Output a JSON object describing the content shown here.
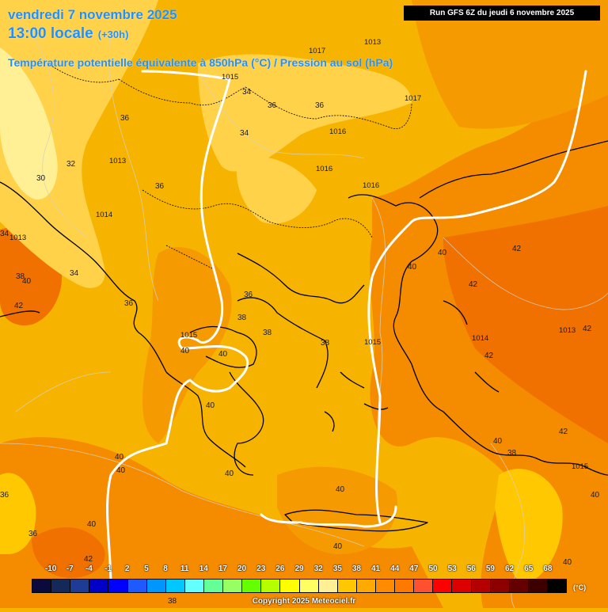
{
  "header": {
    "date": "vendredi 7 novembre 2025",
    "local_time": "13:00 locale",
    "lead_time": "(+30h)",
    "parameter": "Température potentielle équivalente à 850hPa (°C) / Pression au sol (hPa)",
    "run": "Run GFS 6Z du jeudi 6 novembre 2025"
  },
  "legend": {
    "unit": "(°C)",
    "ticks": [
      "-10",
      "-7",
      "-4",
      "-1",
      "2",
      "5",
      "8",
      "11",
      "14",
      "17",
      "20",
      "23",
      "26",
      "29",
      "32",
      "35",
      "38",
      "41",
      "44",
      "47",
      "50",
      "53",
      "56",
      "59",
      "62",
      "65",
      "68"
    ],
    "colors": [
      "#0a0a3c",
      "#14285a",
      "#1e3c96",
      "#0000c8",
      "#0000ff",
      "#1e5aff",
      "#0096ff",
      "#00c8ff",
      "#64ffff",
      "#64ff96",
      "#96ff64",
      "#64ff00",
      "#b4ff00",
      "#ffff00",
      "#ffff64",
      "#fff096",
      "#ffc800",
      "#ffaa00",
      "#ff8c00",
      "#ff7800",
      "#ff5032",
      "#ff0000",
      "#dc0000",
      "#b40000",
      "#8c0000",
      "#640000",
      "#3c0000",
      "#000000"
    ]
  },
  "temperature_labels": [
    "30",
    "32",
    "34",
    "34",
    "36",
    "36",
    "36",
    "36",
    "36",
    "36",
    "34",
    "34",
    "36",
    "38",
    "38",
    "38",
    "38",
    "40",
    "40",
    "40",
    "40",
    "40",
    "40",
    "40",
    "40",
    "40",
    "40",
    "40",
    "40",
    "40",
    "42",
    "42",
    "42",
    "42",
    "42",
    "42",
    "42",
    "40",
    "38",
    "36",
    "36",
    "40",
    "38"
  ],
  "pressure_labels": [
    "1017",
    "1013",
    "1015",
    "1017",
    "1016",
    "1016",
    "1016",
    "1014",
    "1013",
    "1015",
    "1015",
    "1014",
    "1013",
    "1015",
    "1013"
  ],
  "copyright": "Copyright 2025 Meteociel.fr"
}
